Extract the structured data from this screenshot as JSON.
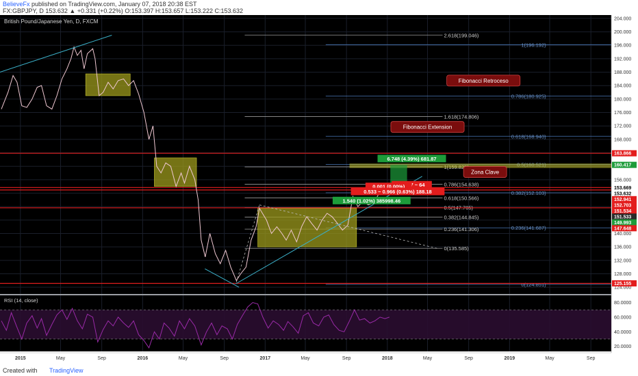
{
  "header": {
    "author": "BelieveFx",
    "published": " published on TradingView.com, January 07, 2018 20:38 EST",
    "symbol_line": "FX:GBPJPY, D 153.632 ▲ +0.331 (+0.22%) O:153.397 H:153.657 L:153.222 C:153.632"
  },
  "footer": {
    "created_with": "Created with",
    "brand": "TradingView"
  },
  "colors": {
    "background": "#000000",
    "grid": "#1a1f2b",
    "price": "#f0c8d2",
    "fib": "#4a78b8",
    "red_level": "#e31d1d",
    "box": "#9c9a1c",
    "trend": "#3bb0c9",
    "rsi": "#9a2aa8",
    "rsi_band": "#2a0d30"
  },
  "chart_data": {
    "type": "line",
    "title": "British Pound/Japanese Yen, D, FXCM",
    "price_axis": {
      "ylim": [
        122.0,
        205.0
      ],
      "ticks": [
        124,
        128,
        132,
        136,
        140,
        144,
        148,
        152,
        156,
        160,
        164,
        168,
        172,
        176,
        180,
        184,
        188,
        192,
        196,
        200,
        204
      ],
      "tick_labels": [
        "124.000",
        "128.000",
        "132.000",
        "136.000",
        "140.000",
        "144.000",
        "148.000",
        "152.000",
        "156.000",
        "160.000",
        "164.000",
        "168.000",
        "172.000",
        "176.000",
        "180.000",
        "184.000",
        "188.000",
        "192.000",
        "196.000",
        "200.000",
        "204.000"
      ]
    },
    "time_axis": {
      "xlim": [
        "2014-11-01",
        "2019-11-01"
      ],
      "ticks": [
        {
          "date": "2015-01-01",
          "label": "2015",
          "bold": true
        },
        {
          "date": "2015-05-01",
          "label": "May",
          "bold": false
        },
        {
          "date": "2015-09-01",
          "label": "Sep",
          "bold": false
        },
        {
          "date": "2016-01-01",
          "label": "2016",
          "bold": true
        },
        {
          "date": "2016-05-01",
          "label": "May",
          "bold": false
        },
        {
          "date": "2016-09-01",
          "label": "Sep",
          "bold": false
        },
        {
          "date": "2017-01-01",
          "label": "2017",
          "bold": true
        },
        {
          "date": "2017-05-01",
          "label": "May",
          "bold": false
        },
        {
          "date": "2017-09-01",
          "label": "Sep",
          "bold": false
        },
        {
          "date": "2018-01-01",
          "label": "2018",
          "bold": true
        },
        {
          "date": "2018-05-01",
          "label": "May",
          "bold": false
        },
        {
          "date": "2018-09-01",
          "label": "Sep",
          "bold": false
        },
        {
          "date": "2019-01-01",
          "label": "2019",
          "bold": true
        },
        {
          "date": "2019-05-01",
          "label": "May",
          "bold": false
        },
        {
          "date": "2019-09-01",
          "label": "Sep",
          "bold": false
        }
      ]
    },
    "price_series": [
      [
        "2014-11-05",
        177.0
      ],
      [
        "2014-11-25",
        182.0
      ],
      [
        "2014-12-10",
        187.0
      ],
      [
        "2014-12-22",
        185.0
      ],
      [
        "2015-01-05",
        178.0
      ],
      [
        "2015-01-20",
        177.5
      ],
      [
        "2015-02-05",
        180.0
      ],
      [
        "2015-02-20",
        183.5
      ],
      [
        "2015-03-05",
        184.0
      ],
      [
        "2015-03-20",
        178.0
      ],
      [
        "2015-04-05",
        177.0
      ],
      [
        "2015-04-20",
        181.0
      ],
      [
        "2015-05-05",
        186.0
      ],
      [
        "2015-05-20",
        189.0
      ],
      [
        "2015-06-01",
        192.0
      ],
      [
        "2015-06-10",
        195.5
      ],
      [
        "2015-06-20",
        193.0
      ],
      [
        "2015-07-01",
        194.5
      ],
      [
        "2015-07-10",
        189.0
      ],
      [
        "2015-07-20",
        193.5
      ],
      [
        "2015-08-05",
        195.0
      ],
      [
        "2015-08-12",
        192.0
      ],
      [
        "2015-08-24",
        181.0
      ],
      [
        "2015-09-05",
        182.0
      ],
      [
        "2015-09-20",
        185.0
      ],
      [
        "2015-10-05",
        183.0
      ],
      [
        "2015-10-20",
        185.5
      ],
      [
        "2015-11-05",
        186.0
      ],
      [
        "2015-11-20",
        184.0
      ],
      [
        "2015-12-05",
        185.5
      ],
      [
        "2015-12-20",
        181.5
      ],
      [
        "2016-01-05",
        176.0
      ],
      [
        "2016-01-20",
        168.0
      ],
      [
        "2016-02-01",
        172.0
      ],
      [
        "2016-02-12",
        160.0
      ],
      [
        "2016-02-25",
        158.0
      ],
      [
        "2016-03-10",
        161.0
      ],
      [
        "2016-03-25",
        160.0
      ],
      [
        "2016-04-10",
        154.0
      ],
      [
        "2016-04-25",
        158.0
      ],
      [
        "2016-05-05",
        155.0
      ],
      [
        "2016-05-20",
        160.0
      ],
      [
        "2016-06-05",
        156.0
      ],
      [
        "2016-06-15",
        150.0
      ],
      [
        "2016-06-24",
        138.0
      ],
      [
        "2016-07-06",
        133.0
      ],
      [
        "2016-07-20",
        140.0
      ],
      [
        "2016-08-05",
        134.0
      ],
      [
        "2016-08-20",
        131.0
      ],
      [
        "2016-09-05",
        135.0
      ],
      [
        "2016-09-20",
        130.0
      ],
      [
        "2016-10-07",
        126.0
      ],
      [
        "2016-10-20",
        128.0
      ],
      [
        "2016-11-05",
        130.0
      ],
      [
        "2016-11-20",
        138.0
      ],
      [
        "2016-12-05",
        142.0
      ],
      [
        "2016-12-15",
        147.5
      ],
      [
        "2017-01-05",
        144.0
      ],
      [
        "2017-01-20",
        140.0
      ],
      [
        "2017-02-05",
        142.0
      ],
      [
        "2017-02-20",
        140.0
      ],
      [
        "2017-03-05",
        138.0
      ],
      [
        "2017-03-20",
        141.0
      ],
      [
        "2017-04-05",
        137.5
      ],
      [
        "2017-04-20",
        142.0
      ],
      [
        "2017-05-05",
        145.0
      ],
      [
        "2017-05-20",
        143.0
      ],
      [
        "2017-06-05",
        141.0
      ],
      [
        "2017-06-20",
        144.0
      ],
      [
        "2017-07-05",
        146.0
      ],
      [
        "2017-07-20",
        145.0
      ],
      [
        "2017-08-05",
        143.0
      ],
      [
        "2017-08-20",
        141.0
      ],
      [
        "2017-09-05",
        142.5
      ],
      [
        "2017-09-20",
        151.0
      ],
      [
        "2017-10-05",
        148.0
      ],
      [
        "2017-10-20",
        149.5
      ],
      [
        "2017-11-05",
        148.5
      ],
      [
        "2017-11-20",
        149.0
      ],
      [
        "2017-12-05",
        151.5
      ],
      [
        "2017-12-20",
        152.0
      ],
      [
        "2018-01-07",
        153.632
      ]
    ],
    "fib_retracement": {
      "name": "Fibonacci Retroceso",
      "start_date": "2017-07-01",
      "end_date": "2019-11-01",
      "levels": [
        {
          "label": "1(196.192)",
          "price": 196.192
        },
        {
          "label": "0.786(180.925)",
          "price": 180.925
        },
        {
          "label": "0.618(168.940)",
          "price": 168.94
        },
        {
          "label": "0.5(160.521)",
          "price": 160.521
        },
        {
          "label": "0.382(152.103)",
          "price": 152.103
        },
        {
          "label": "0.236(141.687)",
          "price": 141.687
        },
        {
          "label": "0(124.851)",
          "price": 124.851
        }
      ]
    },
    "fib_extension": {
      "name": "Fibonacci Extension",
      "start_date": "2016-11-01",
      "end_date": "2018-06-15",
      "levels": [
        {
          "label": "2.618(199.046)",
          "price": 199.046
        },
        {
          "label": "1.618(174.806)",
          "price": 174.806
        },
        {
          "label": "1(159.825)",
          "price": 159.825
        },
        {
          "label": "0.786(154.638)",
          "price": 154.638
        },
        {
          "label": "0.618(150.566)",
          "price": 150.566
        },
        {
          "label": "0.5(147.705)",
          "price": 147.705
        },
        {
          "label": "0.382(144.845)",
          "price": 144.845
        },
        {
          "label": "0.236(141.306)",
          "price": 141.306
        },
        {
          "label": "0(135.585)",
          "price": 135.585
        }
      ]
    },
    "horizontal_levels": [
      163.866,
      153.669,
      152.941,
      147.648,
      125.155
    ],
    "axis_price_labels": [
      {
        "label": "163.866",
        "price": 163.866,
        "color": "#e31d1d"
      },
      {
        "label": "160.417",
        "price": 160.417,
        "color": "#1d9c3a"
      },
      {
        "label": "153.669",
        "price": 153.669,
        "color": "#ffffff",
        "text_color": "#000000"
      },
      {
        "label": "153.632",
        "price": 153.632,
        "color": "#ffffff",
        "text_color": "#000000"
      },
      {
        "label": "152.941",
        "price": 152.941,
        "color": "#e31d1d"
      },
      {
        "label": "152.703",
        "price": 152.703,
        "color": "#e31d1d"
      },
      {
        "label": "151.533",
        "price": 151.533,
        "color": "#2a2a2a"
      },
      {
        "label": "151.534",
        "price": 151.534,
        "color": "#e31d1d"
      },
      {
        "label": "149.993",
        "price": 149.993,
        "color": "#1d9c3a"
      },
      {
        "label": "147.648",
        "price": 147.648,
        "color": "#e31d1d"
      },
      {
        "label": "125.155",
        "price": 125.155,
        "color": "#e31d1d"
      }
    ],
    "boxes": [
      {
        "from": "2015-07-15",
        "to": "2015-11-25",
        "low": 181.0,
        "high": 187.5
      },
      {
        "from": "2016-02-05",
        "to": "2016-06-10",
        "low": 154.0,
        "high": 162.5
      },
      {
        "from": "2016-12-10",
        "to": "2017-10-01",
        "low": 136.0,
        "high": 147.5
      }
    ],
    "zona_clave": {
      "label": "Zona Clave",
      "from": "2017-09-10",
      "to": "2019-11-01",
      "low": 159.5,
      "high": 160.8
    },
    "trend_lines": [
      {
        "from": [
          "2014-11-01",
          188.0
        ],
        "to": [
          "2015-10-01",
          199.0
        ]
      },
      {
        "from": [
          "2016-07-05",
          129.5
        ],
        "to": [
          "2016-10-15",
          124.0
        ]
      },
      {
        "from": [
          "2016-10-05",
          125.0
        ],
        "to": [
          "2018-04-15",
          157.0
        ]
      }
    ],
    "dashed_lines": [
      {
        "from": [
          "2016-10-07",
          125.5
        ],
        "to": [
          "2016-12-15",
          148.5
        ]
      },
      {
        "from": [
          "2016-12-15",
          148.5
        ],
        "to": [
          "2018-06-01",
          135.5
        ]
      }
    ],
    "annotations": [
      {
        "text": "6.748 (4.39%) 681.87",
        "date": "2018-03-15",
        "price": 162.2,
        "bg": "#1d9c3a"
      },
      {
        "text": "-0.037 ~ 64",
        "date": "2018-03-15",
        "price": 154.4,
        "bg": "#e31d1d"
      },
      {
        "text": "0.001 (0.00%)",
        "date": "2018-01-05",
        "price": 153.9,
        "bg": "#e31d1d"
      },
      {
        "text": "0.533 ~ 0.966 (0.63%) 188.18",
        "date": "2018-02-01",
        "price": 152.4,
        "bg": "#e31d1d"
      },
      {
        "text": "1.540 (1.02%) 385998.46",
        "date": "2017-11-15",
        "price": 149.7,
        "bg": "#1d9c3a"
      }
    ],
    "trade_zones": [
      {
        "from": "2018-01-10",
        "to": "2018-03-01",
        "low": 153.6,
        "high": 160.4,
        "color": "#1d9c3a"
      },
      {
        "from": "2018-01-10",
        "to": "2018-03-01",
        "low": 152.7,
        "high": 153.6,
        "color": "#e31d1d"
      }
    ],
    "callouts": [
      {
        "text": "Fibonacci Retroceso",
        "date": "2018-10-15",
        "price": 185.5
      },
      {
        "text": "Fibonacci Extension",
        "date": "2018-05-01",
        "price": 171.7
      },
      {
        "text": "Zona Clave",
        "date": "2018-10-20",
        "price": 158.3
      }
    ],
    "rsi": {
      "title": "RSI (14, close)",
      "ylim": [
        15.0,
        88.0
      ],
      "upper": 70.0,
      "lower": 30.0,
      "ticks": [
        20.0,
        40.0,
        60.0,
        80.0
      ],
      "tick_labels": [
        "20.0000",
        "40.0000",
        "60.0000",
        "80.0000"
      ],
      "values": [
        [
          "2014-11-05",
          55
        ],
        [
          "2014-11-20",
          42
        ],
        [
          "2014-12-05",
          66
        ],
        [
          "2014-12-20",
          48
        ],
        [
          "2015-01-05",
          30
        ],
        [
          "2015-01-20",
          52
        ],
        [
          "2015-02-05",
          62
        ],
        [
          "2015-02-20",
          45
        ],
        [
          "2015-03-05",
          58
        ],
        [
          "2015-03-20",
          35
        ],
        [
          "2015-04-05",
          50
        ],
        [
          "2015-04-20",
          63
        ],
        [
          "2015-05-05",
          70
        ],
        [
          "2015-05-20",
          57
        ],
        [
          "2015-06-05",
          72
        ],
        [
          "2015-06-20",
          55
        ],
        [
          "2015-07-05",
          44
        ],
        [
          "2015-07-20",
          64
        ],
        [
          "2015-08-05",
          60
        ],
        [
          "2015-08-20",
          26
        ],
        [
          "2015-09-05",
          43
        ],
        [
          "2015-09-20",
          55
        ],
        [
          "2015-10-05",
          48
        ],
        [
          "2015-10-20",
          60
        ],
        [
          "2015-11-05",
          52
        ],
        [
          "2015-11-20",
          46
        ],
        [
          "2015-12-05",
          55
        ],
        [
          "2015-12-20",
          36
        ],
        [
          "2016-01-05",
          28
        ],
        [
          "2016-01-20",
          18
        ],
        [
          "2016-02-05",
          40
        ],
        [
          "2016-02-20",
          30
        ],
        [
          "2016-03-05",
          52
        ],
        [
          "2016-03-20",
          45
        ],
        [
          "2016-04-05",
          34
        ],
        [
          "2016-04-20",
          55
        ],
        [
          "2016-05-05",
          44
        ],
        [
          "2016-05-20",
          58
        ],
        [
          "2016-06-05",
          48
        ],
        [
          "2016-06-24",
          22
        ],
        [
          "2016-07-10",
          40
        ],
        [
          "2016-07-25",
          52
        ],
        [
          "2016-08-10",
          36
        ],
        [
          "2016-08-25",
          48
        ],
        [
          "2016-09-10",
          44
        ],
        [
          "2016-09-25",
          30
        ],
        [
          "2016-10-10",
          50
        ],
        [
          "2016-10-25",
          62
        ],
        [
          "2016-11-10",
          74
        ],
        [
          "2016-11-25",
          80
        ],
        [
          "2016-12-10",
          78
        ],
        [
          "2016-12-25",
          60
        ],
        [
          "2017-01-10",
          45
        ],
        [
          "2017-01-25",
          55
        ],
        [
          "2017-02-10",
          50
        ],
        [
          "2017-02-25",
          42
        ],
        [
          "2017-03-10",
          54
        ],
        [
          "2017-03-25",
          47
        ],
        [
          "2017-04-10",
          38
        ],
        [
          "2017-04-25",
          62
        ],
        [
          "2017-05-10",
          66
        ],
        [
          "2017-05-25",
          52
        ],
        [
          "2017-06-10",
          48
        ],
        [
          "2017-06-25",
          60
        ],
        [
          "2017-07-10",
          63
        ],
        [
          "2017-07-25",
          50
        ],
        [
          "2017-08-10",
          42
        ],
        [
          "2017-08-25",
          40
        ],
        [
          "2017-09-10",
          55
        ],
        [
          "2017-09-25",
          70
        ],
        [
          "2017-10-10",
          56
        ],
        [
          "2017-10-25",
          58
        ],
        [
          "2017-11-10",
          52
        ],
        [
          "2017-11-25",
          55
        ],
        [
          "2017-12-10",
          60
        ],
        [
          "2017-12-25",
          58
        ],
        [
          "2018-01-07",
          60
        ]
      ]
    }
  }
}
